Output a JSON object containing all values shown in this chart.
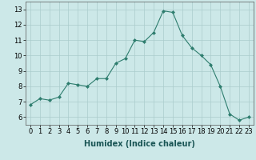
{
  "x": [
    0,
    1,
    2,
    3,
    4,
    5,
    6,
    7,
    8,
    9,
    10,
    11,
    12,
    13,
    14,
    15,
    16,
    17,
    18,
    19,
    20,
    21,
    22,
    23
  ],
  "y": [
    6.8,
    7.2,
    7.1,
    7.3,
    8.2,
    8.1,
    8.0,
    8.5,
    8.5,
    9.5,
    9.8,
    11.0,
    10.9,
    11.5,
    12.9,
    12.8,
    11.3,
    10.5,
    10.0,
    9.4,
    8.0,
    6.2,
    5.8,
    6.0
  ],
  "line_color": "#2e7d6e",
  "marker": "D",
  "marker_size": 2,
  "bg_color": "#cce8e8",
  "grid_color": "#aacccc",
  "xlabel": "Humidex (Indice chaleur)",
  "xlim": [
    -0.5,
    23.5
  ],
  "ylim": [
    5.5,
    13.5
  ],
  "xticks": [
    0,
    1,
    2,
    3,
    4,
    5,
    6,
    7,
    8,
    9,
    10,
    11,
    12,
    13,
    14,
    15,
    16,
    17,
    18,
    19,
    20,
    21,
    22,
    23
  ],
  "yticks": [
    6,
    7,
    8,
    9,
    10,
    11,
    12,
    13
  ],
  "xlabel_fontsize": 7,
  "tick_fontsize": 6
}
